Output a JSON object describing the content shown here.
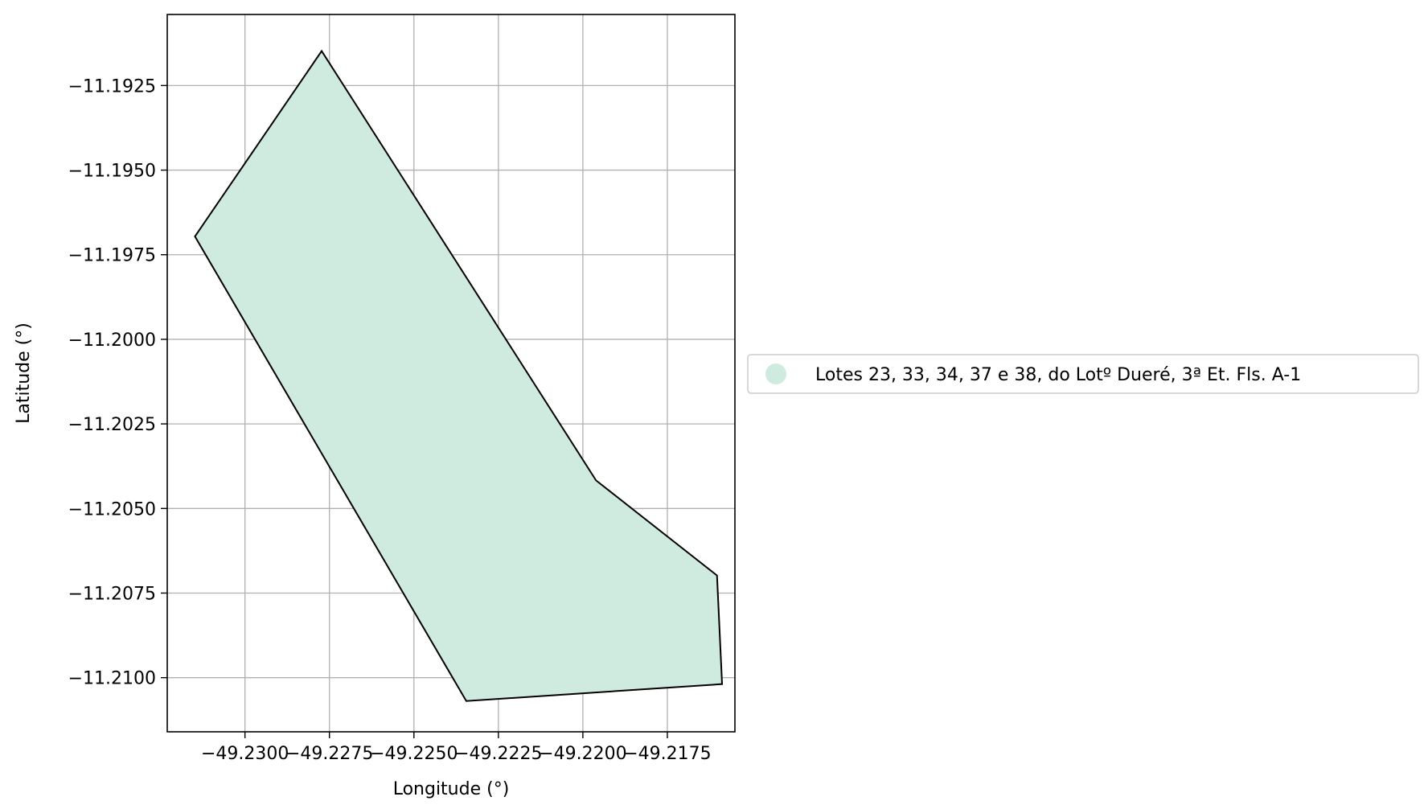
{
  "chart_data": {
    "type": "area",
    "title": "",
    "xlabel": "Longitude (°)",
    "ylabel": "Latitude (°)",
    "xlim": [
      -49.2323,
      -49.2155
    ],
    "ylim": [
      -11.2116,
      -11.1904
    ],
    "xticks": [
      -49.23,
      -49.2275,
      -49.225,
      -49.2225,
      -49.22,
      -49.2175
    ],
    "xtick_labels": [
      "−49.2300",
      "−49.2275",
      "−49.2250",
      "−49.2225",
      "−49.2200",
      "−49.2175"
    ],
    "yticks": [
      -11.1925,
      -11.195,
      -11.1975,
      -11.2,
      -11.2025,
      -11.205,
      -11.2075,
      -11.21
    ],
    "ytick_labels": [
      "−11.1925",
      "−11.1950",
      "−11.1975",
      "−11.2000",
      "−11.2025",
      "−11.2050",
      "−11.2075",
      "−11.2100"
    ],
    "grid": true,
    "legend_placement": "center-right outside",
    "series": [
      {
        "name": "Lotes 23, 33, 34, 37 e 38, do Lotº Dueré, 3ª Et. Fls. A-1",
        "fill_color": "#cfeadf",
        "edge_color": "#000000",
        "polygon": [
          {
            "x": -49.22773,
            "y": -11.19148
          },
          {
            "x": -49.23148,
            "y": -11.19696
          },
          {
            "x": -49.22345,
            "y": -11.21069
          },
          {
            "x": -49.21588,
            "y": -11.21019
          },
          {
            "x": -49.21603,
            "y": -11.20698
          },
          {
            "x": -49.21961,
            "y": -11.20417
          }
        ]
      }
    ]
  }
}
